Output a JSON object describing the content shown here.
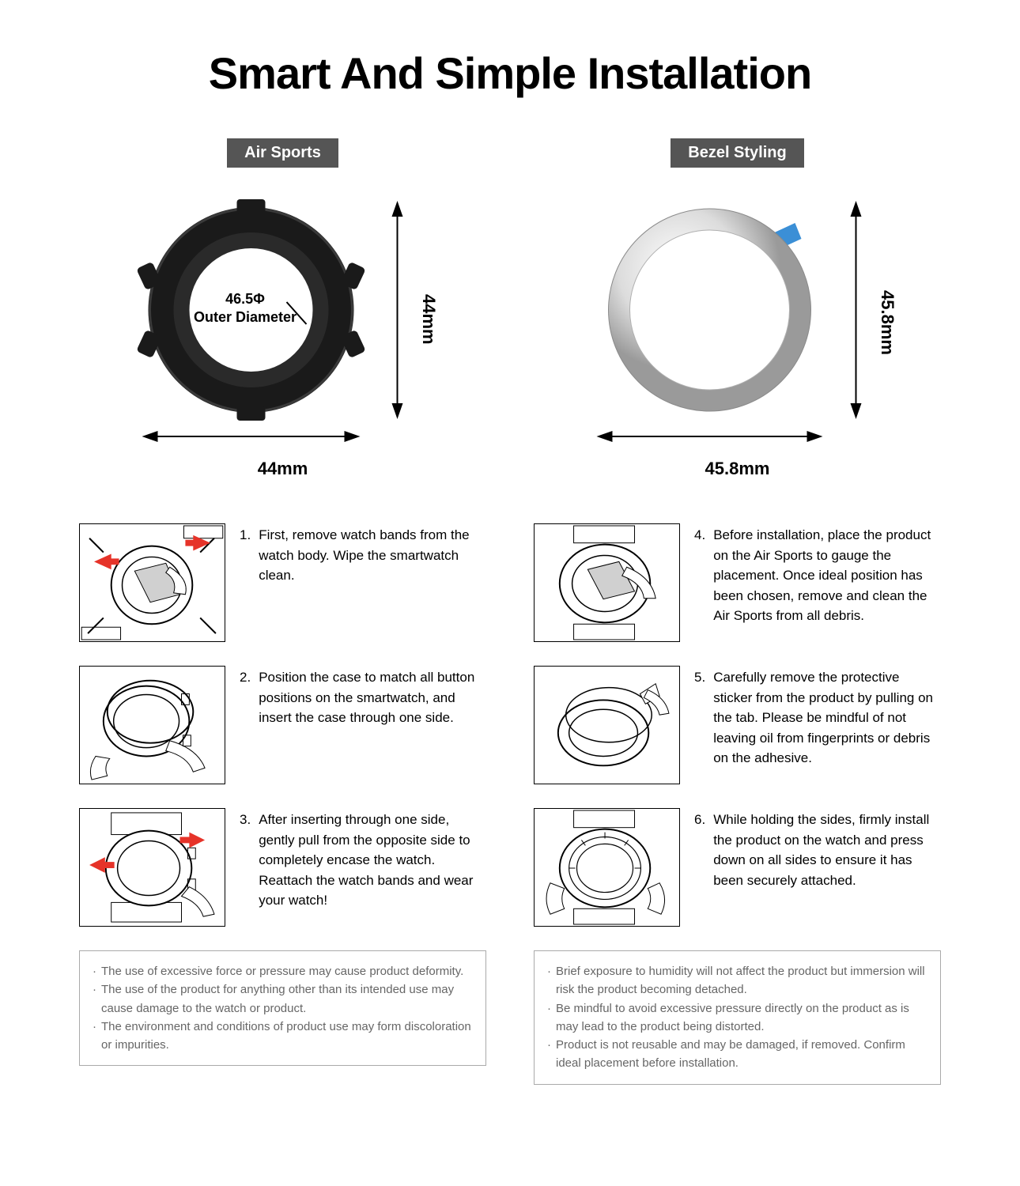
{
  "title": "Smart And Simple Installation",
  "left": {
    "badge": "Air Sports",
    "diagram": {
      "inner_line1": "46.5Φ",
      "inner_line2": "Outer Diameter",
      "height_label": "44mm",
      "width_label": "44mm",
      "case_color": "#1a1a1a",
      "case_highlight": "#3a3a3a",
      "arrow_color": "#000000"
    },
    "steps": [
      {
        "num": "1.",
        "text": "First, remove watch bands from the watch body. Wipe the smartwatch clean."
      },
      {
        "num": "2.",
        "text": "Position the case to match all button positions on the smartwatch, and insert the case through one side."
      },
      {
        "num": "3.",
        "text": "After inserting through one side, gently pull from the opposite side to completely encase the watch. Reattach the watch bands and wear your watch!"
      }
    ],
    "notes": [
      "The use of excessive force or pressure may cause product deformity.",
      "The use of the product for anything other than its intended use may cause damage to the watch or product.",
      "The environment and conditions of product use may form discoloration or impurities."
    ]
  },
  "right": {
    "badge": "Bezel Styling",
    "diagram": {
      "height_label": "45.8mm",
      "width_label": "45.8mm",
      "ring_outer": "#d8d8d8",
      "ring_edge": "#9a9a9a",
      "tab_color": "#3b8fd6",
      "arrow_color": "#000000"
    },
    "steps": [
      {
        "num": "4.",
        "text": "Before installation, place the product on the Air Sports to gauge the placement. Once ideal position has been chosen, remove and clean the Air Sports from all debris."
      },
      {
        "num": "5.",
        "text": "Carefully remove the protective sticker from the product by pulling on the tab. Please be mindful of not leaving oil from fingerprints or debris on the adhesive."
      },
      {
        "num": "6.",
        "text": "While holding the sides, firmly install the product on the watch and press down on all sides to ensure it has been securely attached."
      }
    ],
    "notes": [
      "Brief exposure to humidity will not affect the product but immersion will risk the product becoming detached.",
      "Be mindful to avoid excessive pressure directly on the product as is may lead to the product being distorted.",
      "Product is not reusable and may be damaged, if removed. Confirm ideal placement before installation."
    ]
  },
  "colors": {
    "red_arrow": "#e63329",
    "badge_bg": "#555555",
    "note_border": "#aaaaaa",
    "note_text": "#666666"
  }
}
